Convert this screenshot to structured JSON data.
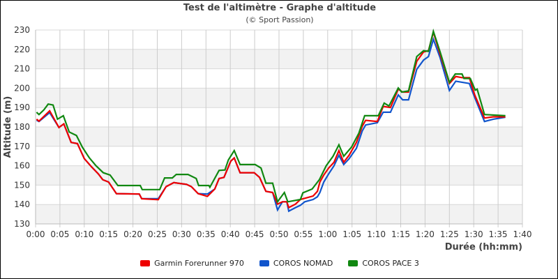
{
  "chart_data": {
    "type": "line",
    "title": "Test de l'altimètre - Graphe d'altitude",
    "subtitle": "(© Sport Passion)",
    "xlabel": "Durée (hh:mm)",
    "ylabel": "Altitude (m)",
    "xlim": [
      "0:00",
      "1:40"
    ],
    "ylim": [
      130,
      230
    ],
    "xticks": [
      "0:00",
      "0:05",
      "0:10",
      "0:15",
      "0:20",
      "0:25",
      "0:30",
      "0:35",
      "0:40",
      "0:45",
      "0:50",
      "0:55",
      "1:00",
      "1:05",
      "1:10",
      "1:15",
      "1:20",
      "1:25",
      "1:30",
      "1:35",
      "1:40"
    ],
    "yticks": [
      130,
      140,
      150,
      160,
      170,
      180,
      190,
      200,
      210,
      220,
      230
    ],
    "grid": true,
    "legend_position": "bottom",
    "series": [
      {
        "name": "Garmin Forerunner 970",
        "color": "#ee0000",
        "x": [
          "0:00:12",
          "0:00:42",
          "0:02:54",
          "0:04:48",
          "0:05:48",
          "0:07:18",
          "0:08:36",
          "0:10:00",
          "0:11:30",
          "0:12:54",
          "0:13:48",
          "0:15:00",
          "0:16:36",
          "0:21:18",
          "0:21:48",
          "0:25:12",
          "0:26:48",
          "0:28:24",
          "0:31:00",
          "0:32:00",
          "0:33:24",
          "0:35:18",
          "0:36:48",
          "0:37:42",
          "0:38:42",
          "0:40:06",
          "0:40:48",
          "0:42:00",
          "0:44:54",
          "0:46:00",
          "0:47:18",
          "0:48:42",
          "0:49:42",
          "0:50:42",
          "0:51:36",
          "0:52:00",
          "0:53:24",
          "0:54:24",
          "0:55:18",
          "0:57:00",
          "0:57:54",
          "0:58:24",
          "0:59:12",
          "1:00:12",
          "1:01:18",
          "1:02:18",
          "1:03:18",
          "1:04:24",
          "1:05:54",
          "1:07:06",
          "1:07:48",
          "1:10:12",
          "1:11:24",
          "1:12:54",
          "1:14:30",
          "1:15:24",
          "1:16:36",
          "1:18:18",
          "1:19:42",
          "1:20:42",
          "1:21:42",
          "1:23:06",
          "1:25:00",
          "1:26:18",
          "1:27:42",
          "1:29:06",
          "1:30:12",
          "1:32:12",
          "1:34:00",
          "1:36:30"
        ],
        "values": [
          184,
          183,
          188.3,
          179.7,
          181.6,
          172,
          171.4,
          163.7,
          159.4,
          155.8,
          152.8,
          151.6,
          145.6,
          145.4,
          143,
          142.5,
          149.2,
          151.3,
          150.4,
          149.2,
          145.6,
          144.2,
          148,
          153.4,
          154,
          162.4,
          164,
          156.4,
          156.4,
          154,
          146.8,
          146.2,
          140.2,
          141.4,
          141.4,
          138.4,
          140.2,
          142.6,
          143.2,
          144.4,
          146.8,
          151.6,
          155.2,
          158.8,
          161.8,
          167.8,
          161.8,
          165.4,
          172,
          180.4,
          183.4,
          182.8,
          190.6,
          190,
          199.5,
          198,
          198,
          213.9,
          218.7,
          219.3,
          228.8,
          217.5,
          202.4,
          206,
          205.4,
          205.4,
          196.5,
          184.6,
          185.2,
          185.2
        ]
      },
      {
        "name": "COROS NOMAD",
        "color": "#1155cc",
        "x": [
          "0:00:12",
          "0:00:42",
          "0:02:54",
          "0:04:48",
          "0:05:48",
          "0:07:18",
          "0:08:36",
          "0:10:00",
          "0:11:30",
          "0:12:54",
          "0:13:48",
          "0:15:00",
          "0:16:36",
          "0:21:18",
          "0:21:48",
          "0:25:12",
          "0:26:48",
          "0:28:24",
          "0:31:00",
          "0:32:00",
          "0:33:24",
          "0:35:18",
          "0:36:48",
          "0:37:42",
          "0:38:42",
          "0:40:06",
          "0:40:48",
          "0:42:00",
          "0:44:54",
          "0:46:00",
          "0:47:18",
          "0:48:42",
          "0:49:42",
          "0:50:42",
          "0:51:36",
          "0:52:00",
          "0:53:24",
          "0:54:24",
          "0:55:18",
          "0:57:00",
          "0:57:54",
          "0:58:24",
          "0:59:12",
          "1:00:12",
          "1:01:18",
          "1:02:18",
          "1:03:18",
          "1:04:24",
          "1:05:54",
          "1:07:06",
          "1:07:48",
          "1:10:12",
          "1:11:24",
          "1:12:54",
          "1:14:30",
          "1:15:24",
          "1:16:36",
          "1:18:18",
          "1:19:42",
          "1:20:42",
          "1:21:42",
          "1:23:06",
          "1:25:00",
          "1:26:18",
          "1:27:42",
          "1:29:06",
          "1:30:12",
          "1:32:12",
          "1:34:00",
          "1:36:30"
        ],
        "values": [
          183.5,
          182.8,
          187.4,
          179.7,
          181.6,
          172,
          171.4,
          163.7,
          159.4,
          155.8,
          152.8,
          151.6,
          145.6,
          145.4,
          143,
          143,
          149.2,
          151.3,
          150.4,
          149.2,
          145.6,
          145.4,
          148,
          153.4,
          154,
          162.4,
          164,
          156.4,
          156.4,
          154,
          146.8,
          146.2,
          137.2,
          141.4,
          141.4,
          136.6,
          138.4,
          139.6,
          141.4,
          142.6,
          144,
          146.2,
          151.6,
          155.8,
          160,
          165.4,
          160.6,
          163.6,
          169,
          178,
          181,
          182.2,
          187.6,
          187.6,
          196.5,
          194,
          194,
          209.7,
          214.5,
          216.3,
          225.2,
          215.7,
          198.8,
          203.6,
          203,
          202.4,
          195.2,
          182.8,
          184,
          185
        ]
      },
      {
        "name": "COROS PACE 3",
        "color": "#118811",
        "x": [
          "0:00:12",
          "0:00:42",
          "0:01:42",
          "0:02:36",
          "0:03:36",
          "0:04:30",
          "0:05:42",
          "0:06:54",
          "0:08:24",
          "0:09:36",
          "0:11:00",
          "0:12:24",
          "0:13:54",
          "0:15:18",
          "0:16:54",
          "0:21:30",
          "0:21:54",
          "0:25:30",
          "0:26:30",
          "0:28:06",
          "0:28:54",
          "0:31:18",
          "0:33:00",
          "0:33:30",
          "0:35:36",
          "0:35:48",
          "0:37:42",
          "0:38:54",
          "0:39:36",
          "0:40:48",
          "0:42:00",
          "0:45:06",
          "0:46:18",
          "0:47:18",
          "0:48:42",
          "0:49:42",
          "0:51:06",
          "0:51:48",
          "0:54:24",
          "0:54:54",
          "0:56:48",
          "0:58:18",
          "0:59:42",
          "1:01:06",
          "1:02:18",
          "1:03:18",
          "1:04:54",
          "1:06:24",
          "1:07:36",
          "1:10:24",
          "1:11:36",
          "1:12:36",
          "1:14:30",
          "1:15:12",
          "1:16:36",
          "1:18:18",
          "1:19:42",
          "1:20:42",
          "1:21:42",
          "1:23:06",
          "1:25:00",
          "1:26:12",
          "1:27:36",
          "1:28:00",
          "1:29:18",
          "1:30:18",
          "1:30:42",
          "1:32:12",
          "1:36:30"
        ],
        "values": [
          187.6,
          186.4,
          188.8,
          191.8,
          191.3,
          184,
          185.8,
          177.4,
          175.6,
          169.6,
          164.2,
          160,
          156.4,
          155.2,
          149.8,
          149.8,
          147.7,
          147.7,
          153.7,
          153.7,
          155.5,
          155.5,
          153.4,
          149.8,
          149.8,
          148.9,
          157.6,
          157.8,
          163,
          167.8,
          160.6,
          160.6,
          158.8,
          151,
          151,
          141.4,
          146.2,
          141.4,
          142.6,
          146,
          148,
          152.8,
          160,
          164.9,
          170.8,
          164.9,
          169.6,
          176.8,
          185.8,
          185.8,
          192.3,
          190.8,
          200.1,
          198,
          198.6,
          216.3,
          219.3,
          219,
          229.3,
          218.7,
          203,
          207.3,
          207.3,
          205,
          205,
          199,
          199.5,
          186.4,
          185.8
        ]
      }
    ]
  }
}
